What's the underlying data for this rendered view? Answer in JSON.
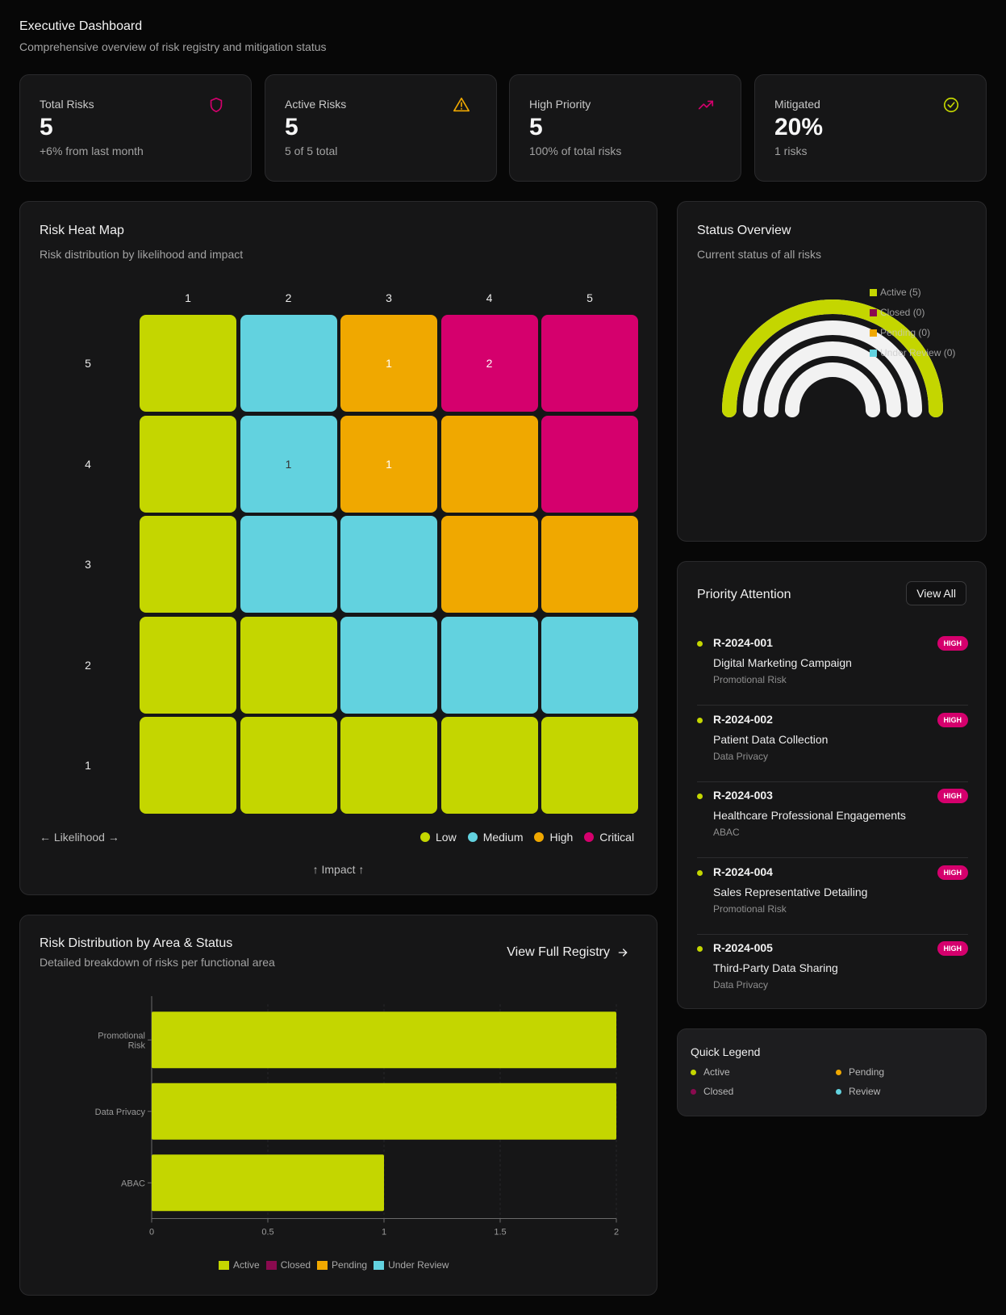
{
  "header": {
    "title": "Executive Dashboard",
    "subtitle": "Comprehensive overview of risk registry and mitigation status"
  },
  "stats": [
    {
      "label": "Total Risks",
      "value": "5",
      "note": "+6% from last month",
      "icon": "shield-icon",
      "icon_color": "#d5006d"
    },
    {
      "label": "Active Risks",
      "value": "5",
      "note": "5 of 5 total",
      "icon": "alert-triangle-icon",
      "icon_color": "#f0a800"
    },
    {
      "label": "High Priority",
      "value": "5",
      "note": "100% of total risks",
      "icon": "trending-up-icon",
      "icon_color": "#d5006d"
    },
    {
      "label": "Mitigated",
      "value": "20%",
      "note": "1 risks",
      "icon": "check-circle-icon",
      "icon_color": "#c4d600"
    }
  ],
  "heatmap": {
    "title": "Risk Heat Map",
    "subtitle": "Risk distribution by likelihood and impact",
    "columns": [
      "1",
      "2",
      "3",
      "4",
      "5"
    ],
    "rows": [
      "5",
      "4",
      "3",
      "2",
      "1"
    ],
    "levels": [
      [
        "low",
        "medium",
        "high",
        "critical",
        "critical"
      ],
      [
        "low",
        "medium",
        "high",
        "high",
        "critical"
      ],
      [
        "low",
        "medium",
        "medium",
        "high",
        "high"
      ],
      [
        "low",
        "low",
        "medium",
        "medium",
        "medium"
      ],
      [
        "low",
        "low",
        "low",
        "low",
        "low"
      ]
    ],
    "counts": [
      [
        "",
        "",
        "1",
        "2",
        ""
      ],
      [
        "",
        "1",
        "1",
        "",
        ""
      ],
      [
        "",
        "",
        "",
        "",
        ""
      ],
      [
        "",
        "",
        "",
        "",
        ""
      ],
      [
        "",
        "",
        "",
        "",
        ""
      ]
    ],
    "colors": {
      "low": "#c4d600",
      "medium": "#62d2df",
      "high": "#f0a800",
      "critical": "#d5006d"
    },
    "x_axis_label": "← Likelihood →",
    "y_axis_label": "↑ Impact ↑",
    "legend": [
      {
        "key": "low",
        "label": "Low"
      },
      {
        "key": "medium",
        "label": "Medium"
      },
      {
        "key": "high",
        "label": "High"
      },
      {
        "key": "critical",
        "label": "Critical"
      }
    ]
  },
  "status_overview": {
    "title": "Status Overview",
    "subtitle": "Current status of all risks",
    "chart_data": {
      "type": "radial-bar",
      "total": 5,
      "series": [
        {
          "name": "Active",
          "label": "Active (5)",
          "value": 5,
          "color": "#c4d600"
        },
        {
          "name": "Closed",
          "label": "Closed (0)",
          "value": 0,
          "color": "#8a0a4f"
        },
        {
          "name": "Pending",
          "label": "Pending (0)",
          "value": 0,
          "color": "#f0a800"
        },
        {
          "name": "Under Review",
          "label": "Under Review (0)",
          "value": 0,
          "color": "#62d2df"
        }
      ]
    }
  },
  "priority": {
    "title": "Priority Attention",
    "view_all_label": "View All",
    "items": [
      {
        "id": "R-2024-001",
        "name": "Digital Marketing Campaign",
        "category": "Promotional Risk",
        "badge": "HIGH"
      },
      {
        "id": "R-2024-002",
        "name": "Patient Data Collection",
        "category": "Data Privacy",
        "badge": "HIGH"
      },
      {
        "id": "R-2024-003",
        "name": "Healthcare Professional Engagements",
        "category": "ABAC",
        "badge": "HIGH"
      },
      {
        "id": "R-2024-004",
        "name": "Sales Representative Detailing",
        "category": "Promotional Risk",
        "badge": "HIGH"
      },
      {
        "id": "R-2024-005",
        "name": "Third-Party Data Sharing",
        "category": "Data Privacy",
        "badge": "HIGH"
      }
    ]
  },
  "quick_legend": {
    "title": "Quick Legend",
    "items": [
      {
        "label": "Active",
        "color": "#c4d600"
      },
      {
        "label": "Pending",
        "color": "#f0a800"
      },
      {
        "label": "Closed",
        "color": "#8a0a4f"
      },
      {
        "label": "Review",
        "color": "#62d2df"
      }
    ]
  },
  "distribution": {
    "title": "Risk Distribution by Area & Status",
    "subtitle": "Detailed breakdown of risks per functional area",
    "view_full_label": "View Full Registry",
    "chart_data": {
      "type": "bar",
      "orientation": "horizontal",
      "stacked": true,
      "categories": [
        "Promotional Risk",
        "Data Privacy",
        "ABAC"
      ],
      "category_lines": [
        [
          "Promotional",
          "Risk"
        ],
        [
          "Data Privacy"
        ],
        [
          "ABAC"
        ]
      ],
      "series": [
        {
          "name": "Active",
          "values": [
            2,
            2,
            1
          ],
          "color": "#c4d600"
        },
        {
          "name": "Closed",
          "values": [
            0,
            0,
            0
          ],
          "color": "#8a0a4f"
        },
        {
          "name": "Pending",
          "values": [
            0,
            0,
            0
          ],
          "color": "#f0a800"
        },
        {
          "name": "Under Review",
          "values": [
            0,
            0,
            0
          ],
          "color": "#62d2df"
        }
      ],
      "xlim": [
        0,
        2
      ],
      "xticks": [
        "0",
        "0.5",
        "1",
        "1.5",
        "2"
      ],
      "legend_position": "bottom"
    }
  }
}
